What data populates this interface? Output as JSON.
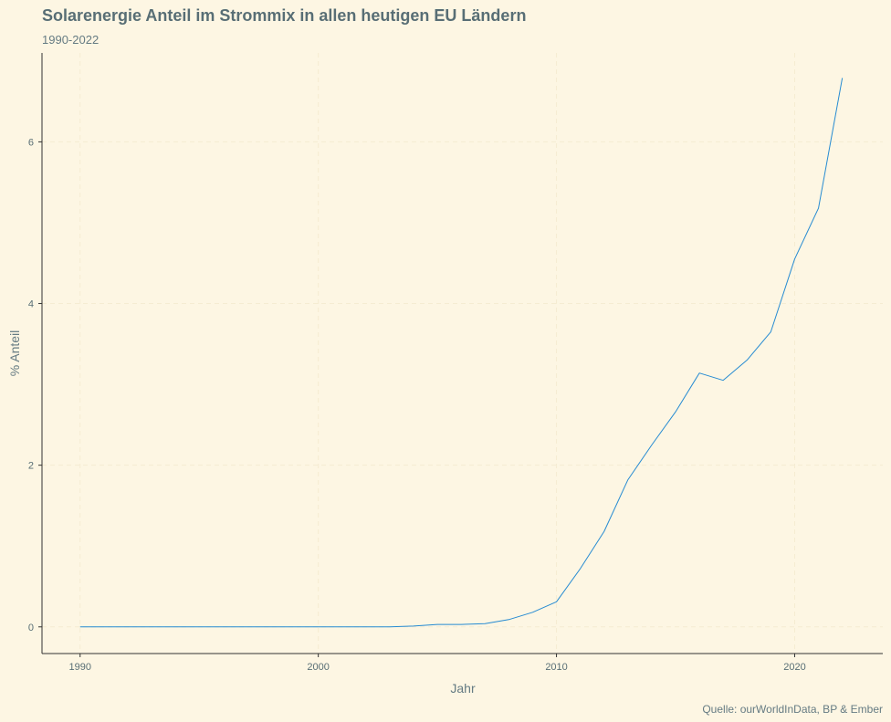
{
  "chart_data": {
    "type": "line",
    "title": "Solarenergie Anteil im Strommix in allen heutigen EU Ländern",
    "subtitle": "1990-2022",
    "xlabel": "Jahr",
    "ylabel": "% Anteil",
    "caption": "Quelle: ourWorldInData, BP & Ember",
    "xlim": [
      1988.4,
      2023.7
    ],
    "ylim": [
      -0.33,
      7.1
    ],
    "x_ticks": [
      1990,
      2000,
      2010,
      2020
    ],
    "y_ticks": [
      0,
      2,
      4,
      6
    ],
    "grid": true,
    "series": [
      {
        "color": "#268bd2",
        "x": [
          1990,
          1991,
          1992,
          1993,
          1994,
          1995,
          1996,
          1997,
          1998,
          1999,
          2000,
          2001,
          2002,
          2003,
          2004,
          2005,
          2006,
          2007,
          2008,
          2009,
          2010,
          2011,
          2012,
          2013,
          2014,
          2015,
          2016,
          2017,
          2018,
          2019,
          2020,
          2021,
          2022
        ],
        "y": [
          0,
          0,
          0,
          0,
          0,
          0,
          0,
          0,
          0,
          0,
          0,
          0,
          0,
          0,
          0.01,
          0.03,
          0.03,
          0.04,
          0.09,
          0.18,
          0.31,
          0.72,
          1.18,
          1.82,
          2.25,
          2.66,
          3.14,
          3.05,
          3.3,
          3.65,
          4.55,
          5.18,
          6.79
        ]
      }
    ]
  },
  "colors": {
    "background": "#fdf6e3",
    "grid": "#f5ecd2",
    "axis": "#333333",
    "line": "#268bd2"
  }
}
